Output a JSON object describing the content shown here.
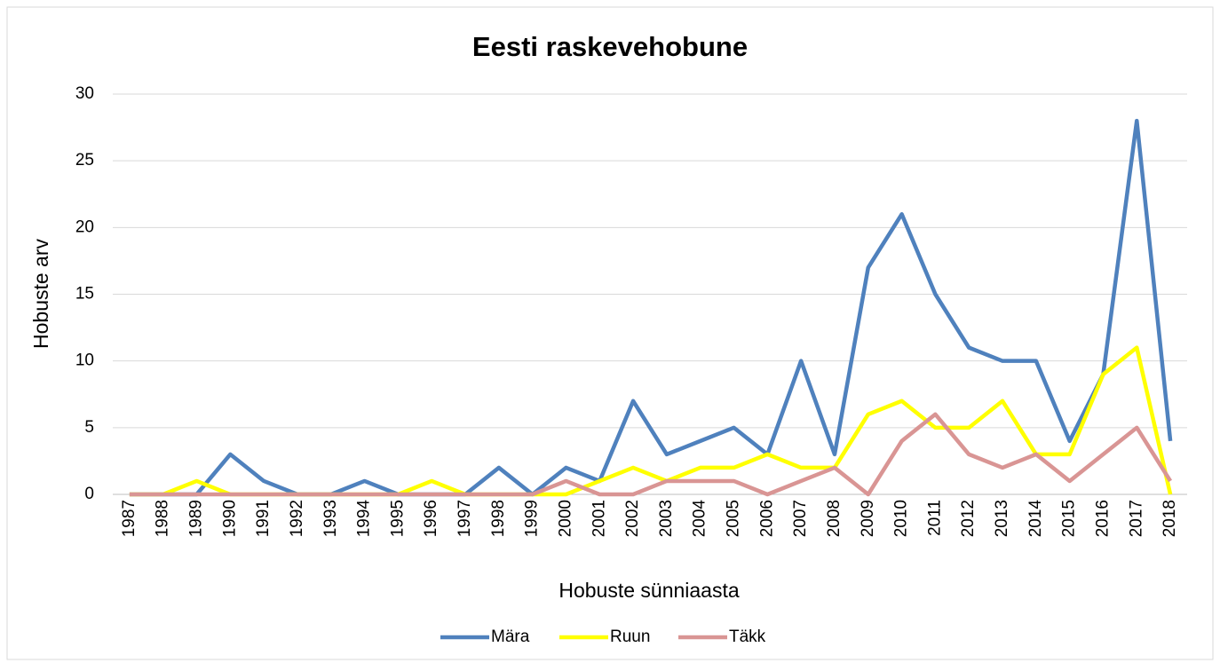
{
  "chart_data": {
    "type": "line",
    "title": "Eesti raskevehobune",
    "x_label": "Hobuste sünniaasta",
    "y_label": "Hobuste arv",
    "categories": [
      "1987",
      "1988",
      "1989",
      "1990",
      "1991",
      "1992",
      "1993",
      "1994",
      "1995",
      "1996",
      "1997",
      "1998",
      "1999",
      "2000",
      "2001",
      "2002",
      "2003",
      "2004",
      "2005",
      "2006",
      "2007",
      "2008",
      "2009",
      "2010",
      "2011",
      "2012",
      "2013",
      "2014",
      "2015",
      "2016",
      "2017",
      "2018"
    ],
    "series": [
      {
        "name": "Mära",
        "color": "#4f81bd",
        "values": [
          0,
          0,
          0,
          3,
          1,
          0,
          0,
          1,
          0,
          0,
          0,
          2,
          0,
          2,
          1,
          7,
          3,
          4,
          5,
          3,
          10,
          3,
          17,
          21,
          15,
          11,
          10,
          10,
          4,
          9,
          28,
          4
        ]
      },
      {
        "name": "Ruun",
        "color": "#ffff00",
        "values": [
          0,
          0,
          1,
          0,
          0,
          0,
          0,
          0,
          0,
          1,
          0,
          0,
          0,
          0,
          1,
          2,
          1,
          2,
          2,
          3,
          2,
          2,
          6,
          7,
          5,
          5,
          7,
          3,
          3,
          9,
          11,
          0
        ]
      },
      {
        "name": "Täkk",
        "color": "#d99594",
        "values": [
          0,
          0,
          0,
          0,
          0,
          0,
          0,
          0,
          0,
          0,
          0,
          0,
          0,
          1,
          0,
          0,
          1,
          1,
          1,
          0,
          1,
          2,
          0,
          4,
          6,
          3,
          2,
          3,
          1,
          3,
          5,
          1
        ]
      }
    ],
    "ylim": [
      0,
      30
    ],
    "yticks": [
      0,
      5,
      10,
      15,
      20,
      25,
      30
    ],
    "grid": true,
    "legend": "bottom"
  }
}
